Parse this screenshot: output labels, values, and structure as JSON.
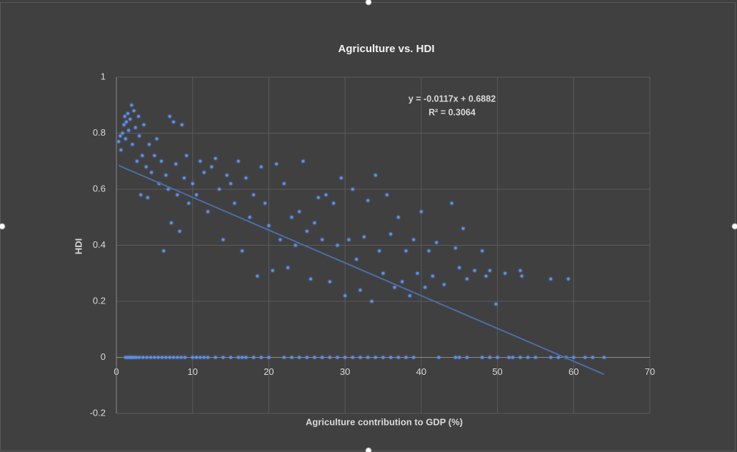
{
  "chart_data": {
    "type": "scatter",
    "title": "Agriculture vs. HDI",
    "x_label": "Agriculture contribution to GDP (%)",
    "y_label": "HDI",
    "xlim": [
      0,
      70
    ],
    "xticks": [
      0,
      10,
      20,
      30,
      40,
      50,
      60,
      70
    ],
    "ylim": [
      -0.2,
      1
    ],
    "yticks": [
      -0.2,
      0,
      0.2,
      0.4,
      0.6,
      0.8,
      1
    ],
    "grid": true,
    "color": "#5b8fe8",
    "x": [
      1.2,
      1.5,
      1.8,
      2.0,
      2.3,
      2.6,
      3,
      3.5,
      4,
      4.5,
      5,
      5.5,
      6,
      6.5,
      7,
      7.5,
      8,
      8.5,
      9,
      10,
      10.5,
      11,
      11.5,
      12,
      13,
      14,
      15,
      16,
      16.5,
      17,
      18,
      19,
      20,
      22,
      23,
      24,
      25,
      26,
      27,
      28,
      29,
      30,
      31,
      32,
      33,
      34,
      35,
      36,
      37,
      38,
      39,
      42.3,
      44.5,
      45,
      46,
      48,
      49,
      50,
      51.5,
      52,
      53,
      54,
      55,
      57,
      58,
      59,
      60,
      61.5,
      62.5,
      64,
      0.3,
      0.5,
      0.6,
      0.8,
      1,
      1.1,
      1.2,
      1.3,
      1.5,
      1.6,
      1.8,
      2,
      2.1,
      2.3,
      2.5,
      2.7,
      2.9,
      3,
      3.2,
      3.4,
      3.6,
      3.9,
      4.1,
      4.3,
      4.6,
      5,
      5.3,
      5.6,
      5.9,
      6.2,
      6.5,
      6.8,
      7,
      7.2,
      7.5,
      7.8,
      8,
      8.3,
      8.6,
      8.9,
      9.2,
      9.5,
      10,
      10.5,
      11,
      11.5,
      12,
      12.5,
      13,
      13.5,
      14,
      14.5,
      15,
      15.5,
      16,
      16.5,
      17,
      17.5,
      18,
      18.5,
      19,
      19.5,
      20,
      20.5,
      21,
      21.5,
      22,
      22.5,
      23,
      23.5,
      24,
      24.5,
      25,
      25.5,
      26,
      26.5,
      27,
      27.5,
      28,
      28.5,
      29,
      29.5,
      30,
      30.5,
      31,
      31.5,
      32,
      32.5,
      33,
      33.5,
      34,
      34.5,
      35,
      35.5,
      36,
      36.5,
      37,
      37.5,
      38,
      38.5,
      39,
      39.5,
      40,
      40.5,
      41,
      41.5,
      42,
      43,
      44,
      44.5,
      45,
      45.5,
      46,
      47,
      48,
      48.5,
      49,
      49.8,
      51,
      53,
      53.2,
      57,
      59.3
    ],
    "values": [
      0,
      0,
      0,
      0,
      0,
      0,
      0,
      0,
      0,
      0,
      0,
      0,
      0,
      0,
      0,
      0,
      0,
      0,
      0,
      0,
      0,
      0,
      0,
      0,
      0,
      0,
      0,
      0,
      0,
      0,
      0,
      0,
      0,
      0,
      0,
      0,
      0,
      0,
      0,
      0,
      0,
      0,
      0,
      0,
      0,
      0,
      0,
      0,
      0,
      0,
      0,
      0,
      0,
      0,
      0,
      0,
      0,
      0,
      0,
      0,
      0,
      0,
      0,
      0,
      0,
      0,
      0,
      0,
      0,
      0,
      0.77,
      0.79,
      0.74,
      0.8,
      0.83,
      0.86,
      0.78,
      0.84,
      0.87,
      0.81,
      0.85,
      0.9,
      0.76,
      0.88,
      0.82,
      0.7,
      0.86,
      0.79,
      0.58,
      0.72,
      0.83,
      0.68,
      0.57,
      0.76,
      0.66,
      0.72,
      0.78,
      0.62,
      0.7,
      0.38,
      0.65,
      0.6,
      0.86,
      0.48,
      0.84,
      0.69,
      0.58,
      0.45,
      0.83,
      0.64,
      0.72,
      0.55,
      0.62,
      0.58,
      0.7,
      0.66,
      0.52,
      0.68,
      0.71,
      0.6,
      0.42,
      0.65,
      0.62,
      0.55,
      0.7,
      0.38,
      0.64,
      0.5,
      0.58,
      0.29,
      0.68,
      0.55,
      0.47,
      0.31,
      0.69,
      0.42,
      0.62,
      0.32,
      0.5,
      0.4,
      0.52,
      0.7,
      0.45,
      0.28,
      0.48,
      0.57,
      0.42,
      0.58,
      0.27,
      0.55,
      0.4,
      0.64,
      0.22,
      0.42,
      0.6,
      0.35,
      0.24,
      0.43,
      0.56,
      0.2,
      0.65,
      0.38,
      0.3,
      0.58,
      0.44,
      0.25,
      0.5,
      0.27,
      0.38,
      0.22,
      0.42,
      0.3,
      0.52,
      0.25,
      0.38,
      0.29,
      0.41,
      0.26,
      0.55,
      0.39,
      0.32,
      0.46,
      0.28,
      0.31,
      0.38,
      0.29,
      0.31,
      0.19,
      0.3,
      0.31,
      0.29,
      0.28,
      0.28
    ],
    "trendline": {
      "slope": -0.0117,
      "intercept": 0.6882,
      "color": "#4a6ea8",
      "equation": "y = -0.0117x + 0.6882",
      "r_squared": "R² = 0.3064"
    }
  }
}
